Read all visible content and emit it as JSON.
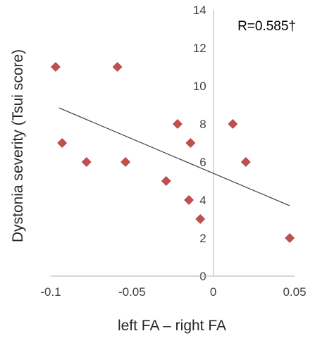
{
  "chart_data": {
    "type": "scatter",
    "title": "",
    "xlabel": "left FA – right FA",
    "ylabel": "Dystonia severity (Tsui score)",
    "xlim": [
      -0.1,
      0.05
    ],
    "ylim": [
      0,
      14
    ],
    "x_ticks": [
      -0.1,
      -0.05,
      0,
      0.05
    ],
    "x_tick_labels": [
      "-0.1",
      "-0.05",
      "0",
      "0.05"
    ],
    "y_ticks": [
      0,
      2,
      4,
      6,
      8,
      10,
      12,
      14
    ],
    "y_tick_labels": [
      "0",
      "2",
      "4",
      "6",
      "8",
      "10",
      "12",
      "14"
    ],
    "grid": false,
    "legend": false,
    "annotation": "R=0.585†",
    "marker": "diamond",
    "marker_color": "#c0504d",
    "trendline_color": "#404040",
    "axis_color": "#bfbfbf",
    "points": [
      {
        "x": -0.097,
        "y": 11
      },
      {
        "x": -0.059,
        "y": 11
      },
      {
        "x": -0.093,
        "y": 7
      },
      {
        "x": -0.078,
        "y": 6
      },
      {
        "x": -0.054,
        "y": 6
      },
      {
        "x": -0.029,
        "y": 5
      },
      {
        "x": -0.022,
        "y": 8
      },
      {
        "x": -0.014,
        "y": 7
      },
      {
        "x": -0.015,
        "y": 4
      },
      {
        "x": -0.008,
        "y": 3
      },
      {
        "x": 0.012,
        "y": 8
      },
      {
        "x": 0.02,
        "y": 6
      },
      {
        "x": 0.047,
        "y": 2
      }
    ],
    "trendline": {
      "x": [
        -0.095,
        0.047
      ],
      "y": [
        8.85,
        3.7
      ]
    }
  }
}
